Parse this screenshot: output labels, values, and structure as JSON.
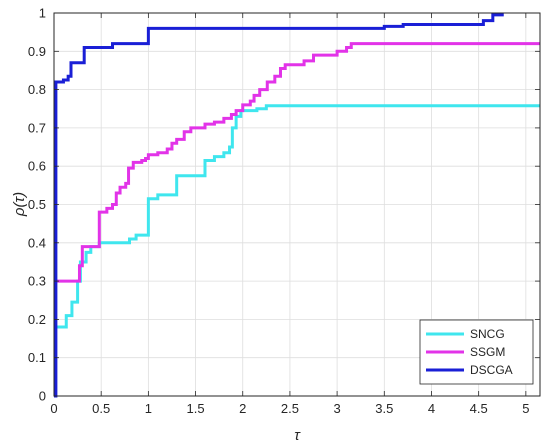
{
  "chart_data": {
    "type": "line",
    "title": "",
    "xlabel": "τ",
    "ylabel": "ρ(τ)",
    "xlim": [
      0,
      5.15
    ],
    "ylim": [
      0,
      1
    ],
    "grid": true,
    "legend_position": "bottom-right",
    "xticks": [
      0,
      0.5,
      1,
      1.5,
      2,
      2.5,
      3,
      3.5,
      4,
      4.5,
      5
    ],
    "xtick_labels": [
      "0",
      "0.5",
      "1",
      "1.5",
      "2",
      "2.5",
      "3",
      "3.5",
      "4",
      "4.5",
      "5"
    ],
    "yticks": [
      0,
      0.1,
      0.2,
      0.3,
      0.4,
      0.5,
      0.6,
      0.7,
      0.8,
      0.9,
      1
    ],
    "ytick_labels": [
      "0",
      "0.1",
      "0.2",
      "0.3",
      "0.4",
      "0.5",
      "0.6",
      "0.7",
      "0.8",
      "0.9",
      "1"
    ],
    "series": [
      {
        "name": "SNCG",
        "color": "#3fe6ee",
        "points": [
          [
            0,
            0.18
          ],
          [
            0.13,
            0.18
          ],
          [
            0.13,
            0.21
          ],
          [
            0.19,
            0.21
          ],
          [
            0.19,
            0.245
          ],
          [
            0.25,
            0.245
          ],
          [
            0.25,
            0.3
          ],
          [
            0.28,
            0.3
          ],
          [
            0.28,
            0.35
          ],
          [
            0.34,
            0.35
          ],
          [
            0.34,
            0.375
          ],
          [
            0.39,
            0.375
          ],
          [
            0.39,
            0.39
          ],
          [
            0.48,
            0.39
          ],
          [
            0.48,
            0.4
          ],
          [
            0.8,
            0.4
          ],
          [
            0.8,
            0.41
          ],
          [
            0.87,
            0.41
          ],
          [
            0.87,
            0.42
          ],
          [
            1.0,
            0.42
          ],
          [
            1.0,
            0.515
          ],
          [
            1.1,
            0.515
          ],
          [
            1.1,
            0.525
          ],
          [
            1.3,
            0.525
          ],
          [
            1.3,
            0.575
          ],
          [
            1.6,
            0.575
          ],
          [
            1.6,
            0.615
          ],
          [
            1.7,
            0.615
          ],
          [
            1.7,
            0.625
          ],
          [
            1.8,
            0.625
          ],
          [
            1.8,
            0.635
          ],
          [
            1.86,
            0.635
          ],
          [
            1.86,
            0.65
          ],
          [
            1.89,
            0.65
          ],
          [
            1.89,
            0.7
          ],
          [
            1.93,
            0.7
          ],
          [
            1.93,
            0.73
          ],
          [
            1.98,
            0.73
          ],
          [
            1.98,
            0.745
          ],
          [
            2.15,
            0.745
          ],
          [
            2.15,
            0.75
          ],
          [
            2.25,
            0.75
          ],
          [
            2.25,
            0.758
          ],
          [
            5.15,
            0.758
          ]
        ]
      },
      {
        "name": "SSGM",
        "color": "#e233e8",
        "points": [
          [
            0,
            0.3
          ],
          [
            0.27,
            0.3
          ],
          [
            0.27,
            0.34
          ],
          [
            0.3,
            0.34
          ],
          [
            0.3,
            0.39
          ],
          [
            0.48,
            0.39
          ],
          [
            0.48,
            0.48
          ],
          [
            0.56,
            0.48
          ],
          [
            0.56,
            0.49
          ],
          [
            0.62,
            0.49
          ],
          [
            0.62,
            0.5
          ],
          [
            0.66,
            0.5
          ],
          [
            0.66,
            0.53
          ],
          [
            0.7,
            0.53
          ],
          [
            0.7,
            0.545
          ],
          [
            0.76,
            0.545
          ],
          [
            0.76,
            0.555
          ],
          [
            0.79,
            0.555
          ],
          [
            0.79,
            0.595
          ],
          [
            0.84,
            0.595
          ],
          [
            0.84,
            0.61
          ],
          [
            0.93,
            0.61
          ],
          [
            0.93,
            0.615
          ],
          [
            0.97,
            0.615
          ],
          [
            0.97,
            0.62
          ],
          [
            1.0,
            0.62
          ],
          [
            1.0,
            0.63
          ],
          [
            1.1,
            0.63
          ],
          [
            1.1,
            0.635
          ],
          [
            1.2,
            0.635
          ],
          [
            1.2,
            0.645
          ],
          [
            1.25,
            0.645
          ],
          [
            1.25,
            0.66
          ],
          [
            1.3,
            0.66
          ],
          [
            1.3,
            0.67
          ],
          [
            1.38,
            0.67
          ],
          [
            1.38,
            0.69
          ],
          [
            1.45,
            0.69
          ],
          [
            1.45,
            0.7
          ],
          [
            1.6,
            0.7
          ],
          [
            1.6,
            0.71
          ],
          [
            1.7,
            0.71
          ],
          [
            1.7,
            0.715
          ],
          [
            1.8,
            0.715
          ],
          [
            1.8,
            0.725
          ],
          [
            1.88,
            0.725
          ],
          [
            1.88,
            0.735
          ],
          [
            1.93,
            0.735
          ],
          [
            1.93,
            0.745
          ],
          [
            2.0,
            0.745
          ],
          [
            2.0,
            0.76
          ],
          [
            2.08,
            0.76
          ],
          [
            2.08,
            0.77
          ],
          [
            2.12,
            0.77
          ],
          [
            2.12,
            0.785
          ],
          [
            2.18,
            0.785
          ],
          [
            2.18,
            0.8
          ],
          [
            2.26,
            0.8
          ],
          [
            2.26,
            0.82
          ],
          [
            2.34,
            0.82
          ],
          [
            2.34,
            0.835
          ],
          [
            2.4,
            0.835
          ],
          [
            2.4,
            0.855
          ],
          [
            2.45,
            0.855
          ],
          [
            2.45,
            0.865
          ],
          [
            2.65,
            0.865
          ],
          [
            2.65,
            0.875
          ],
          [
            2.75,
            0.875
          ],
          [
            2.75,
            0.89
          ],
          [
            3.0,
            0.89
          ],
          [
            3.0,
            0.9
          ],
          [
            3.1,
            0.9
          ],
          [
            3.1,
            0.91
          ],
          [
            3.15,
            0.91
          ],
          [
            3.15,
            0.92
          ],
          [
            5.15,
            0.92
          ]
        ]
      },
      {
        "name": "DSCGA",
        "color": "#1a1fd6",
        "points": [
          [
            0,
            0.0
          ],
          [
            0.02,
            0.0
          ],
          [
            0.02,
            0.82
          ],
          [
            0.1,
            0.82
          ],
          [
            0.1,
            0.825
          ],
          [
            0.15,
            0.825
          ],
          [
            0.15,
            0.835
          ],
          [
            0.18,
            0.835
          ],
          [
            0.18,
            0.87
          ],
          [
            0.32,
            0.87
          ],
          [
            0.32,
            0.91
          ],
          [
            0.62,
            0.91
          ],
          [
            0.62,
            0.92
          ],
          [
            1.0,
            0.92
          ],
          [
            1.0,
            0.96
          ],
          [
            3.5,
            0.96
          ],
          [
            3.5,
            0.965
          ],
          [
            3.7,
            0.965
          ],
          [
            3.7,
            0.97
          ],
          [
            4.55,
            0.97
          ],
          [
            4.55,
            0.98
          ],
          [
            4.65,
            0.98
          ],
          [
            4.65,
            0.995
          ],
          [
            4.75,
            0.995
          ],
          [
            4.75,
            1.0
          ]
        ]
      }
    ]
  }
}
